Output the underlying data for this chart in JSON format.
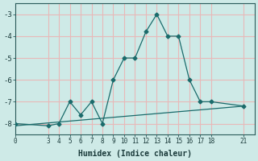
{
  "xlabel": "Humidex (Indice chaleur)",
  "bg_color": "#ceeae7",
  "grid_color": "#e8b8b8",
  "line_color": "#1a6b6b",
  "xlim": [
    0,
    22
  ],
  "ylim": [
    -8.5,
    -2.5
  ],
  "x_ticks": [
    0,
    3,
    4,
    5,
    6,
    7,
    8,
    9,
    10,
    11,
    12,
    13,
    14,
    15,
    16,
    17,
    18,
    21
  ],
  "y_ticks": [
    -8,
    -7,
    -6,
    -5,
    -4,
    -3
  ],
  "curve_x": [
    0,
    3,
    4,
    5,
    6,
    7,
    8,
    9,
    10,
    11,
    12,
    13,
    14,
    15,
    16,
    17,
    18,
    21
  ],
  "curve_y": [
    -8.0,
    -8.1,
    -8.0,
    -7.0,
    -7.6,
    -7.0,
    -8.0,
    -6.0,
    -5.0,
    -5.0,
    -3.8,
    -3.0,
    -4.0,
    -4.0,
    -6.0,
    -7.0,
    -7.0,
    -7.2
  ],
  "line_x": [
    0,
    21
  ],
  "line_y": [
    -8.1,
    -7.2
  ]
}
